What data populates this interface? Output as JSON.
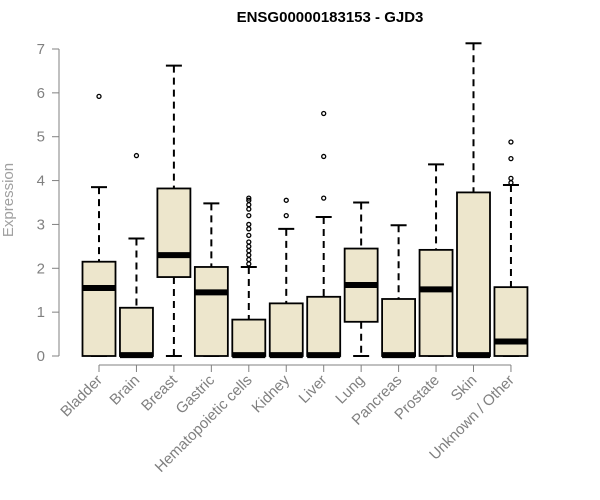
{
  "chart_data": {
    "type": "box",
    "title": "ENSG00000183153 - GJD3",
    "xlabel": "",
    "ylabel": "Expression",
    "ylim": [
      0,
      7
    ],
    "yticks": [
      0,
      1,
      2,
      3,
      4,
      5,
      6,
      7
    ],
    "grid": false,
    "legend": "none",
    "colors": {
      "box_fill": "#ede6cc",
      "stroke": "#000000",
      "axis_text": "#808080"
    },
    "categories": [
      "Bladder",
      "Brain",
      "Breast",
      "Gastric",
      "Hematopoietic cells",
      "Kidney",
      "Liver",
      "Lung",
      "Pancreas",
      "Prostate",
      "Skin",
      "Unknown / Other"
    ],
    "boxes": [
      {
        "min": 0,
        "q1": 0,
        "median": 1.55,
        "q3": 2.15,
        "max": 3.85,
        "outliers": [
          5.92
        ]
      },
      {
        "min": 0,
        "q1": 0,
        "median": 0.02,
        "q3": 1.1,
        "max": 2.68,
        "outliers": [
          4.57
        ]
      },
      {
        "min": 0,
        "q1": 1.8,
        "median": 2.3,
        "q3": 3.82,
        "max": 6.62,
        "outliers": []
      },
      {
        "min": 0,
        "q1": 0,
        "median": 1.45,
        "q3": 2.03,
        "max": 3.48,
        "outliers": []
      },
      {
        "min": 0,
        "q1": 0,
        "median": 0.02,
        "q3": 0.83,
        "max": 2.03,
        "outliers": [
          2.1,
          2.2,
          2.3,
          2.4,
          2.5,
          2.6,
          2.75,
          2.9,
          3.0,
          3.2,
          3.35,
          3.45,
          3.55,
          3.6
        ]
      },
      {
        "min": 0,
        "q1": 0,
        "median": 0.02,
        "q3": 1.2,
        "max": 2.9,
        "outliers": [
          3.2,
          3.55
        ]
      },
      {
        "min": 0,
        "q1": 0,
        "median": 0.02,
        "q3": 1.35,
        "max": 3.17,
        "outliers": [
          3.6,
          4.55,
          5.53
        ]
      },
      {
        "min": 0,
        "q1": 0.78,
        "median": 1.62,
        "q3": 2.45,
        "max": 3.5,
        "outliers": []
      },
      {
        "min": 0,
        "q1": 0,
        "median": 0.02,
        "q3": 1.3,
        "max": 2.98,
        "outliers": []
      },
      {
        "min": 0,
        "q1": 0,
        "median": 1.52,
        "q3": 2.42,
        "max": 4.37,
        "outliers": []
      },
      {
        "min": 0,
        "q1": 0,
        "median": 0.02,
        "q3": 3.73,
        "max": 7.13,
        "outliers": []
      },
      {
        "min": 0,
        "q1": 0,
        "median": 0.33,
        "q3": 1.57,
        "max": 3.9,
        "outliers": [
          3.95,
          4.05,
          4.5,
          4.88
        ]
      }
    ]
  }
}
